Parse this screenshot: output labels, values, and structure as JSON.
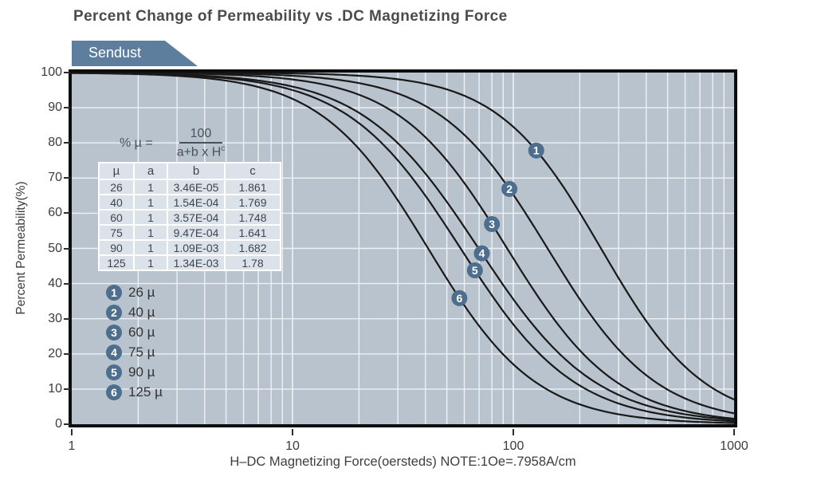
{
  "header": {
    "title": "Percent Change of Permeability vs .DC Magnetizing Force",
    "material_tab": "Sendust"
  },
  "formula": {
    "lhs": "% µ =",
    "numerator": "100",
    "denominator_base": "a+b x H",
    "denominator_exponent": "c"
  },
  "table": {
    "columns": [
      "µ",
      "a",
      "b",
      "c"
    ],
    "rows": [
      [
        "26",
        "1",
        "3.46E-05",
        "1.861"
      ],
      [
        "40",
        "1",
        "1.54E-04",
        "1.769"
      ],
      [
        "60",
        "1",
        "3.57E-04",
        "1.748"
      ],
      [
        "75",
        "1",
        "9.47E-04",
        "1.641"
      ],
      [
        "90",
        "1",
        "1.09E-03",
        "1.682"
      ],
      [
        "125",
        "1",
        "1.34E-03",
        "1.78"
      ]
    ]
  },
  "legend": {
    "items": [
      {
        "marker": "1",
        "label": "26 µ"
      },
      {
        "marker": "2",
        "label": "40 µ"
      },
      {
        "marker": "3",
        "label": "60 µ"
      },
      {
        "marker": "4",
        "label": "75 µ"
      },
      {
        "marker": "5",
        "label": "90 µ"
      },
      {
        "marker": "6",
        "label": "125 µ"
      }
    ]
  },
  "axes": {
    "x": {
      "label": "H–DC Magnetizing Force(oersteds) NOTE:1Oe=.7958A/cm",
      "scale": "log",
      "ticks": [
        1,
        10,
        100,
        1000
      ]
    },
    "y": {
      "label": "Percent Permeability(%)",
      "ticks": [
        100,
        90,
        80,
        70,
        60,
        50,
        40,
        30,
        20,
        10,
        0
      ]
    }
  },
  "chart_data": {
    "type": "line",
    "title": "Percent Change of Permeability vs .DC Magnetizing Force",
    "xlabel": "H–DC Magnetizing Force(oersteds) NOTE:1Oe=.7958A/cm",
    "ylabel": "Percent Permeability(%)",
    "x_scale": "log",
    "xlim": [
      1,
      1000
    ],
    "ylim": [
      0,
      100
    ],
    "grid": true,
    "formula": "%µ = 100 / (a + b × H^c)",
    "sample_H": [
      1,
      3,
      10,
      30,
      100,
      300,
      1000
    ],
    "series": [
      {
        "marker": "1",
        "name": "26 µ",
        "mu": 26,
        "a": 1,
        "b": 3.46e-05,
        "c": 1.861,
        "marker_at_H": 127,
        "values": [
          100,
          100,
          99.7,
          98.1,
          84.6,
          41.5,
          7.0
        ]
      },
      {
        "marker": "2",
        "name": "40 µ",
        "mu": 40,
        "a": 1,
        "b": 0.000154,
        "c": 1.769,
        "marker_at_H": 96,
        "values": [
          100,
          99.9,
          99.1,
          94.1,
          65.3,
          21.2,
          3.1
        ]
      },
      {
        "marker": "3",
        "name": "60 µ",
        "mu": 60,
        "a": 1,
        "b": 0.000357,
        "c": 1.748,
        "marker_at_H": 80,
        "values": [
          100,
          99.8,
          98.0,
          88.0,
          47.2,
          11.6,
          1.6
        ]
      },
      {
        "marker": "4",
        "name": "75 µ",
        "mu": 75,
        "a": 1,
        "b": 0.000947,
        "c": 1.641,
        "marker_at_H": 72,
        "values": [
          99.9,
          99.4,
          96.0,
          79.9,
          35.6,
          8.3,
          1.2
        ]
      },
      {
        "marker": "5",
        "name": "90 µ",
        "mu": 90,
        "a": 1,
        "b": 0.00109,
        "c": 1.682,
        "marker_at_H": 67,
        "values": [
          99.9,
          99.2,
          95.0,
          75.1,
          28.4,
          6.0,
          0.8
        ]
      },
      {
        "marker": "6",
        "name": "125 µ",
        "mu": 125,
        "a": 1,
        "b": 0.00134,
        "c": 1.78,
        "marker_at_H": 57,
        "values": [
          99.9,
          98.9,
          92.5,
          63.7,
          17.0,
          2.9,
          0.3
        ]
      }
    ]
  },
  "colors": {
    "plot_bg": "#b9c3ce",
    "grid": "#edf1f5",
    "curve": "#191919",
    "accent_blue": "#5d7e9d",
    "marker_blue": "#4d6e8d",
    "table_cell": "#dce2e9",
    "border": "#0d0d0d"
  }
}
